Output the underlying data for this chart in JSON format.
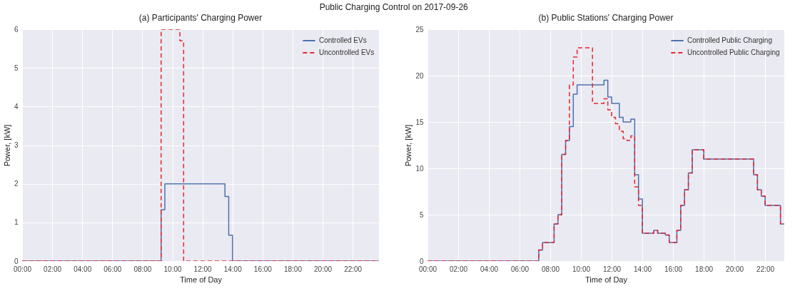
{
  "chart_data": [
    {
      "type": "step",
      "title": "(a) Participants' Charging Power",
      "xlabel": "Time of Day",
      "ylabel": "Power, [kW]",
      "annotations": [
        "Public Charging Control on 2017-09-26"
      ],
      "series": [
        {
          "name": "Controlled EVs",
          "color": "#4c72b0",
          "line_style": "solid",
          "x": [
            0,
            9.25,
            9.5,
            13.5,
            13.75,
            14,
            23.75
          ],
          "values": [
            0,
            1.33,
            2,
            1.67,
            0.67,
            0,
            0
          ]
        },
        {
          "name": "Uncontrolled EVs",
          "color": "#e8262b",
          "line_style": "dashed",
          "x": [
            0,
            9.25,
            10.5,
            10.75,
            23.75
          ],
          "values": [
            0,
            6,
            5.7,
            0,
            0
          ]
        }
      ],
      "xlim": [
        0,
        23.75
      ],
      "xticks": [
        {
          "value": 0,
          "label": "00:00"
        },
        {
          "value": 2,
          "label": "02:00"
        },
        {
          "value": 4,
          "label": "04:00"
        },
        {
          "value": 6,
          "label": "06:00"
        },
        {
          "value": 8,
          "label": "08:00"
        },
        {
          "value": 10,
          "label": "10:00"
        },
        {
          "value": 12,
          "label": "12:00"
        },
        {
          "value": 14,
          "label": "14:00"
        },
        {
          "value": 16,
          "label": "16:00"
        },
        {
          "value": 18,
          "label": "18:00"
        },
        {
          "value": 20,
          "label": "20:00"
        },
        {
          "value": 22,
          "label": "22:00"
        }
      ],
      "ylim": [
        0,
        6
      ],
      "yticks": [
        0,
        1,
        2,
        3,
        4,
        5,
        6
      ],
      "grid": true,
      "legend": "top right"
    },
    {
      "type": "step",
      "title": "(b) Public Stations' Charging Power",
      "xlabel": "Time of Day",
      "ylabel": "Power, [kW]",
      "series": [
        {
          "name": "Controlled Public Charging",
          "color": "#4c72b0",
          "line_style": "solid",
          "x": [
            0,
            7.25,
            7.5,
            8.25,
            8.5,
            8.75,
            9,
            9.25,
            9.5,
            9.75,
            11.5,
            11.75,
            12,
            12.5,
            12.75,
            13.25,
            13.5,
            13.75,
            14,
            14.75,
            15,
            15.5,
            15.75,
            16.25,
            16.5,
            16.75,
            17,
            17.25,
            18,
            21.25,
            21.5,
            21.75,
            22,
            23,
            23.25
          ],
          "values": [
            0,
            1.2,
            2,
            4,
            5,
            11.5,
            13,
            14.5,
            18,
            19,
            19.5,
            17.7,
            17,
            15.5,
            15,
            15.3,
            9.3,
            6.7,
            3,
            3.3,
            3,
            2.8,
            2,
            3.3,
            6,
            7.7,
            9.5,
            12,
            11,
            9.3,
            7.7,
            7,
            6,
            4,
            4
          ]
        },
        {
          "name": "Uncontrolled Public Charging",
          "color": "#e8262b",
          "line_style": "dashed",
          "x": [
            0,
            7.25,
            7.5,
            8.25,
            8.5,
            8.75,
            9,
            9.25,
            9.5,
            9.75,
            10.75,
            11.5,
            11.75,
            12,
            12.25,
            12.5,
            12.75,
            13,
            13.25,
            13.5,
            13.75,
            14,
            14.75,
            15,
            15.5,
            15.75,
            16.25,
            16.5,
            16.75,
            17,
            17.25,
            18,
            21.25,
            21.5,
            21.75,
            22,
            23,
            23.25
          ],
          "values": [
            0,
            1.2,
            2,
            4,
            5,
            11.5,
            13,
            19,
            22,
            23,
            17,
            17.5,
            16.3,
            15.5,
            14.8,
            14,
            13.2,
            13,
            13.5,
            8,
            6,
            3,
            3.3,
            3,
            2.8,
            2,
            3.3,
            6,
            7.7,
            9.5,
            12,
            11,
            9.3,
            7.7,
            7,
            6,
            4,
            4
          ]
        }
      ],
      "xlim": [
        0,
        23.25
      ],
      "xticks": [
        {
          "value": 0,
          "label": "00:00"
        },
        {
          "value": 2,
          "label": "02:00"
        },
        {
          "value": 4,
          "label": "04:00"
        },
        {
          "value": 6,
          "label": "06:00"
        },
        {
          "value": 8,
          "label": "08:00"
        },
        {
          "value": 10,
          "label": "10:00"
        },
        {
          "value": 12,
          "label": "12:00"
        },
        {
          "value": 14,
          "label": "14:00"
        },
        {
          "value": 16,
          "label": "16:00"
        },
        {
          "value": 18,
          "label": "18:00"
        },
        {
          "value": 20,
          "label": "20:00"
        },
        {
          "value": 22,
          "label": "22:00"
        }
      ],
      "ylim": [
        0,
        25
      ],
      "yticks": [
        0,
        5,
        10,
        15,
        20,
        25
      ],
      "grid": true,
      "legend": "top right"
    }
  ]
}
